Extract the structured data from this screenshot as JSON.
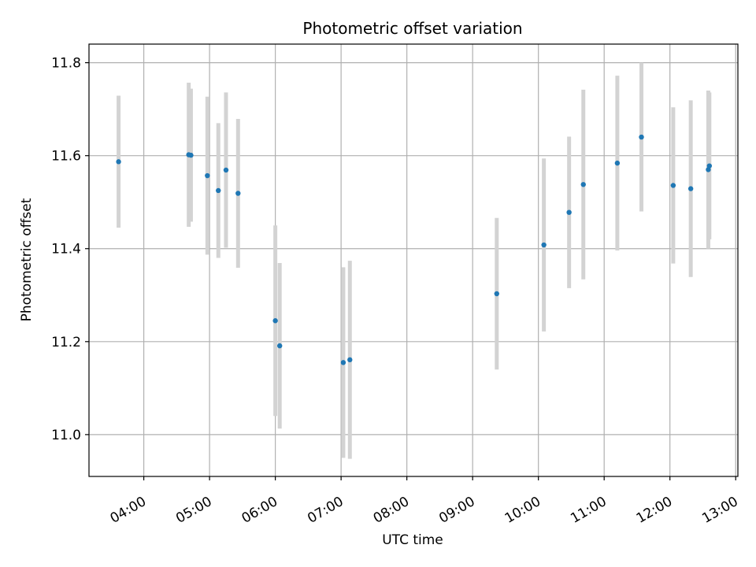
{
  "chart_data": {
    "type": "scatter",
    "title": "Photometric offset variation",
    "xlabel": "UTC time",
    "ylabel": "Photometric offset",
    "x_is_time": true,
    "xlim": [
      "03:10",
      "13:02"
    ],
    "ylim": [
      10.91,
      11.84
    ],
    "grid": true,
    "x_ticks": [
      "04:00",
      "05:00",
      "06:00",
      "07:00",
      "08:00",
      "09:00",
      "10:00",
      "11:00",
      "12:00",
      "13:00"
    ],
    "y_ticks": [
      "11.0",
      "11.2",
      "11.4",
      "11.6",
      "11.8"
    ],
    "marker_color": "#1f77b4",
    "errorbar_color": "#d3d3d3",
    "points": [
      {
        "time": "03:37",
        "y": 11.587,
        "err": 0.142
      },
      {
        "time": "04:41",
        "y": 11.602,
        "err": 0.155
      },
      {
        "time": "04:43",
        "y": 11.601,
        "err": 0.143
      },
      {
        "time": "04:58",
        "y": 11.557,
        "err": 0.17
      },
      {
        "time": "05:08",
        "y": 11.525,
        "err": 0.145
      },
      {
        "time": "05:15",
        "y": 11.569,
        "err": 0.167
      },
      {
        "time": "05:26",
        "y": 11.519,
        "err": 0.16
      },
      {
        "time": "06:00",
        "y": 11.245,
        "err": 0.205
      },
      {
        "time": "06:04",
        "y": 11.191,
        "err": 0.178
      },
      {
        "time": "07:02",
        "y": 11.155,
        "err": 0.205
      },
      {
        "time": "07:08",
        "y": 11.161,
        "err": 0.213
      },
      {
        "time": "09:22",
        "y": 11.303,
        "err": 0.163
      },
      {
        "time": "10:05",
        "y": 11.408,
        "err": 0.186
      },
      {
        "time": "10:28",
        "y": 11.478,
        "err": 0.163
      },
      {
        "time": "10:41",
        "y": 11.538,
        "err": 0.204
      },
      {
        "time": "11:12",
        "y": 11.584,
        "err": 0.188
      },
      {
        "time": "11:34",
        "y": 11.64,
        "err": 0.16
      },
      {
        "time": "12:03",
        "y": 11.536,
        "err": 0.168
      },
      {
        "time": "12:19",
        "y": 11.529,
        "err": 0.19
      },
      {
        "time": "12:35",
        "y": 11.57,
        "err": 0.17
      },
      {
        "time": "12:36",
        "y": 11.578,
        "err": 0.158
      }
    ]
  }
}
